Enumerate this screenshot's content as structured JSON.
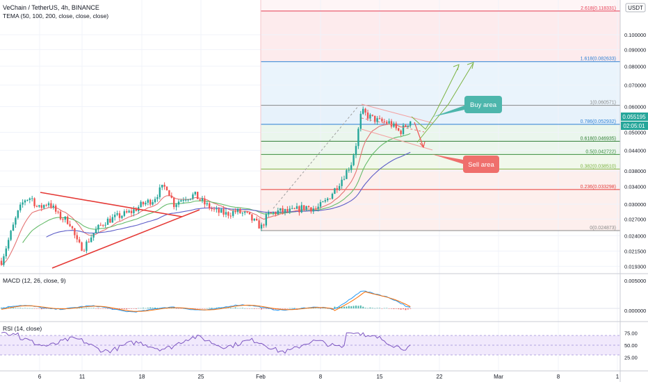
{
  "header": {
    "title": "VeChain / TetherUS, 4h, BINANCE",
    "indicator": "TEMA (50, 100, 200, close, close, close)",
    "currency": "USDT"
  },
  "price_labels": {
    "current": "0.055195",
    "countdown": "02:05:01"
  },
  "annotations": {
    "buy": "Buy area",
    "sell": "Sell area"
  },
  "colors": {
    "up": "#26a69a",
    "down": "#ef5350",
    "trendline": "#e53935",
    "tema50": "#e57373",
    "tema100": "#66bb6a",
    "tema200": "#5c5cc7",
    "macd": "#2196f3",
    "signal": "#ff6d00",
    "rsi": "#7e57c2",
    "buy_bubble": "#4db6ac",
    "sell_bubble": "#ef6f6c"
  },
  "chart_data": [
    {
      "type": "candlestick",
      "title": "VeChain / TetherUS, 4h, BINANCE",
      "yscale": "log",
      "ylim": [
        0.0185,
        0.128
      ],
      "x_ticks": [
        "6",
        "11",
        "18",
        "25",
        "Feb",
        "8",
        "15",
        "22",
        "Mar",
        "8",
        "1"
      ],
      "y_ticks": [
        "0.100000",
        "0.090000",
        "0.080000",
        "0.070000",
        "0.060000",
        "0.050000",
        "0.044000",
        "0.038000",
        "0.034000",
        "0.030000",
        "0.027000",
        "0.024000",
        "0.021500",
        "0.019300"
      ],
      "fib_levels": [
        {
          "ratio": "2.618",
          "price": 0.118331,
          "label": "2.618(0.118331)",
          "color": "#e53950"
        },
        {
          "ratio": "1.618",
          "price": 0.082633,
          "label": "1.618(0.082633)",
          "color": "#2a7fd4"
        },
        {
          "ratio": "1",
          "price": 0.060571,
          "label": "1(0.060571)",
          "color": "#888888"
        },
        {
          "ratio": "0.786",
          "price": 0.052932,
          "label": "0.786(0.052932)",
          "color": "#2a7fd4"
        },
        {
          "ratio": "0.618",
          "price": 0.046935,
          "label": "0.618(0.046935)",
          "color": "#2e7d32"
        },
        {
          "ratio": "0.5",
          "price": 0.042722,
          "label": "0.5(0.042722)",
          "color": "#388e3c"
        },
        {
          "ratio": "0.382",
          "price": 0.03851,
          "label": "0.382(0.038510)",
          "color": "#7cb342"
        },
        {
          "ratio": "0.236",
          "price": 0.033298,
          "label": "0.236(0.033298)",
          "color": "#e53935"
        },
        {
          "ratio": "0",
          "price": 0.024873,
          "label": "0(0.024873)",
          "color": "#888888"
        }
      ],
      "price_anchors": [
        [
          0,
          0.0195
        ],
        [
          10,
          0.0225
        ],
        [
          25,
          0.028
        ],
        [
          35,
          0.031
        ],
        [
          45,
          0.0315
        ],
        [
          55,
          0.029
        ],
        [
          70,
          0.0305
        ],
        [
          85,
          0.0275
        ],
        [
          100,
          0.0265
        ],
        [
          112,
          0.0225
        ],
        [
          120,
          0.022
        ],
        [
          135,
          0.0245
        ],
        [
          150,
          0.0265
        ],
        [
          170,
          0.0275
        ],
        [
          190,
          0.0285
        ],
        [
          205,
          0.03
        ],
        [
          220,
          0.031
        ],
        [
          232,
          0.0335
        ],
        [
          240,
          0.034
        ],
        [
          250,
          0.03
        ],
        [
          265,
          0.0315
        ],
        [
          280,
          0.032
        ],
        [
          295,
          0.03
        ],
        [
          310,
          0.0285
        ],
        [
          325,
          0.028
        ],
        [
          340,
          0.0285
        ],
        [
          355,
          0.0278
        ],
        [
          368,
          0.0262
        ],
        [
          376,
          0.0255
        ],
        [
          385,
          0.0278
        ],
        [
          400,
          0.0285
        ],
        [
          420,
          0.0285
        ],
        [
          440,
          0.0295
        ],
        [
          455,
          0.029
        ],
        [
          468,
          0.0305
        ],
        [
          480,
          0.033
        ],
        [
          492,
          0.036
        ],
        [
          505,
          0.04
        ],
        [
          512,
          0.046
        ],
        [
          520,
          0.058
        ],
        [
          530,
          0.056
        ],
        [
          545,
          0.054
        ],
        [
          560,
          0.0535
        ],
        [
          575,
          0.05
        ],
        [
          585,
          0.053
        ],
        [
          593,
          0.0552
        ]
      ]
    },
    {
      "type": "line",
      "title": "MACD (12, 26, close, 9)",
      "y_ticks": [
        "0.005000",
        "0.000000"
      ]
    },
    {
      "type": "line",
      "title": "RSI (14, close)",
      "y_ticks": [
        "75.00",
        "50.00",
        "25.00"
      ],
      "band": [
        30,
        70
      ]
    }
  ]
}
